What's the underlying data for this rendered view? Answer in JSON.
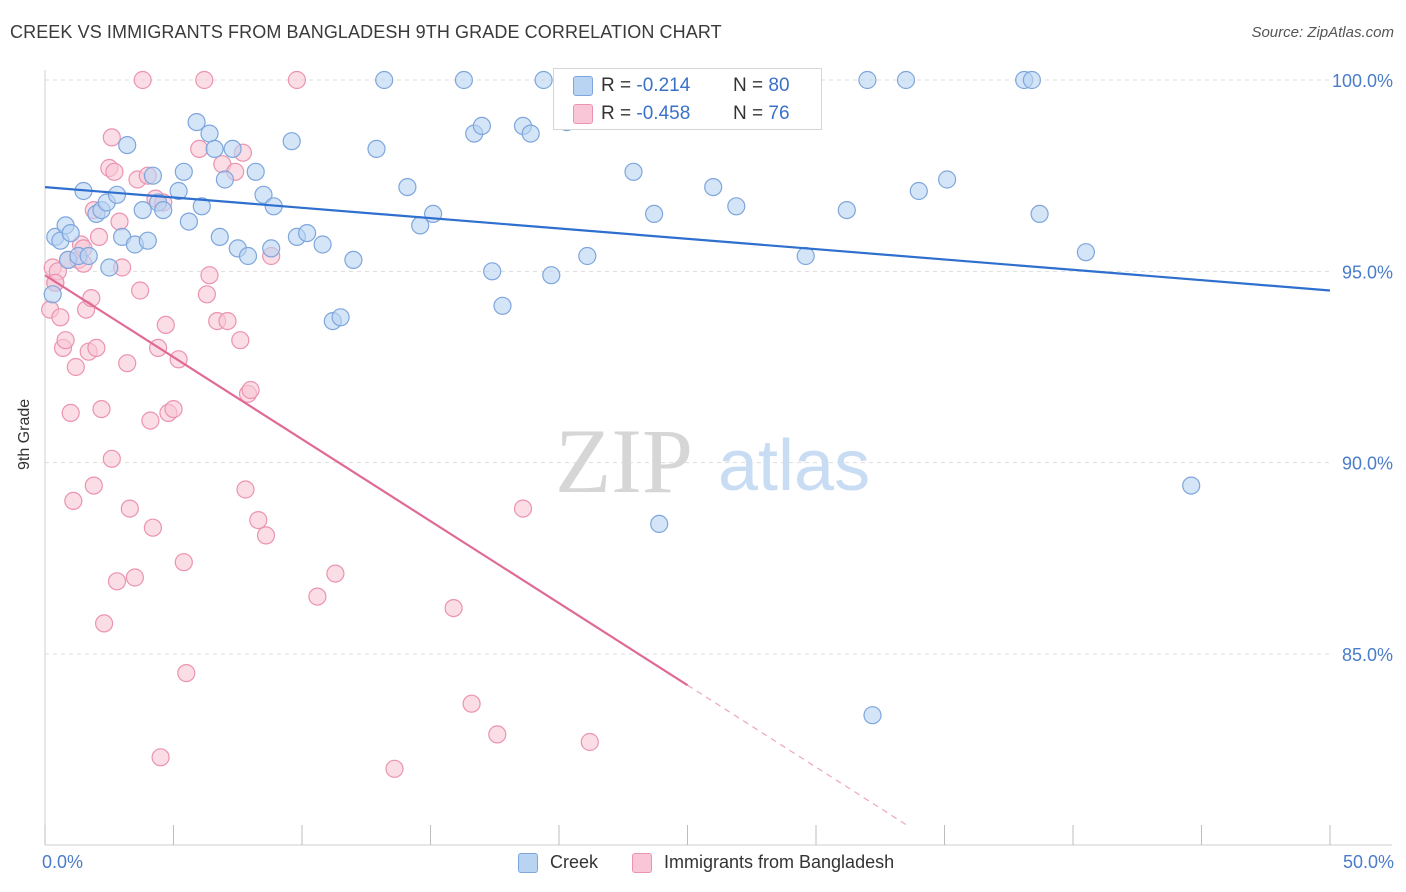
{
  "header": {
    "title": "CREEK VS IMMIGRANTS FROM BANGLADESH 9TH GRADE CORRELATION CHART",
    "source": "Source: ZipAtlas.com"
  },
  "watermark": {
    "zip": "ZIP",
    "atlas": "atlas"
  },
  "legend": {
    "rows": [
      {
        "r_label": "R =",
        "r_value": "-0.214",
        "n_label": "N =",
        "n_value": "80"
      },
      {
        "r_label": "R =",
        "r_value": "-0.458",
        "n_label": "N =",
        "n_value": "76"
      }
    ]
  },
  "bottom_legend": {
    "creek": "Creek",
    "bangladesh": "Immigrants from Bangladesh"
  },
  "colors": {
    "creek_fill": "#b9d3f3",
    "creek_stroke": "#7ea6dc",
    "creek_line": "#2f6fce",
    "bang_fill": "#f8c6d6",
    "bang_stroke": "#eb93b1",
    "bang_line": "#e06a96",
    "tick_text": "#4a7cc9",
    "grid": "#dddddd"
  },
  "chart_data": {
    "type": "scatter",
    "title": "CREEK VS IMMIGRANTS FROM BANGLADESH 9TH GRADE CORRELATION CHART",
    "xlabel": "",
    "ylabel": "9th Grade",
    "xlim": [
      0,
      50
    ],
    "ylim": [
      80.5,
      101
    ],
    "x_tick_labels": [
      "0.0%",
      "50.0%"
    ],
    "y_ticks": [
      85,
      90,
      95,
      100
    ],
    "y_tick_labels": [
      "85.0%",
      "90.0%",
      "95.0%",
      "100.0%"
    ],
    "grid": true,
    "legend_position": "top-center",
    "series": [
      {
        "name": "Creek",
        "r": -0.214,
        "n": 80,
        "trend": {
          "x": [
            0,
            50
          ],
          "y": [
            97.2,
            94.5
          ],
          "dashed_from": null
        },
        "points": [
          [
            0.3,
            94.4
          ],
          [
            0.4,
            95.9
          ],
          [
            0.6,
            95.8
          ],
          [
            0.8,
            96.2
          ],
          [
            0.9,
            95.3
          ],
          [
            1.0,
            96.0
          ],
          [
            1.3,
            95.4
          ],
          [
            1.5,
            97.1
          ],
          [
            1.7,
            95.4
          ],
          [
            2.0,
            96.5
          ],
          [
            2.2,
            96.6
          ],
          [
            2.4,
            96.8
          ],
          [
            2.5,
            95.1
          ],
          [
            2.8,
            97.0
          ],
          [
            3.0,
            95.9
          ],
          [
            3.2,
            98.3
          ],
          [
            3.5,
            95.7
          ],
          [
            3.8,
            96.6
          ],
          [
            4.0,
            95.8
          ],
          [
            4.2,
            97.5
          ],
          [
            4.4,
            96.8
          ],
          [
            4.6,
            96.6
          ],
          [
            5.2,
            97.1
          ],
          [
            5.4,
            97.6
          ],
          [
            5.6,
            96.3
          ],
          [
            5.9,
            98.9
          ],
          [
            6.1,
            96.7
          ],
          [
            6.4,
            98.6
          ],
          [
            6.6,
            98.2
          ],
          [
            6.8,
            95.9
          ],
          [
            7.0,
            97.4
          ],
          [
            7.3,
            98.2
          ],
          [
            7.5,
            95.6
          ],
          [
            7.9,
            95.4
          ],
          [
            8.2,
            97.6
          ],
          [
            8.5,
            97.0
          ],
          [
            8.9,
            96.7
          ],
          [
            8.8,
            95.6
          ],
          [
            9.6,
            98.4
          ],
          [
            9.8,
            95.9
          ],
          [
            10.2,
            96.0
          ],
          [
            10.8,
            95.7
          ],
          [
            11.2,
            93.7
          ],
          [
            11.5,
            93.8
          ],
          [
            12.0,
            95.3
          ],
          [
            13.2,
            100
          ],
          [
            12.9,
            98.2
          ],
          [
            14.1,
            97.2
          ],
          [
            14.6,
            96.2
          ],
          [
            15.1,
            96.5
          ],
          [
            16.3,
            100
          ],
          [
            16.7,
            98.6
          ],
          [
            17.0,
            98.8
          ],
          [
            17.4,
            95.0
          ],
          [
            17.8,
            94.1
          ],
          [
            18.6,
            98.8
          ],
          [
            18.9,
            98.6
          ],
          [
            19.4,
            100
          ],
          [
            19.7,
            94.9
          ],
          [
            20.3,
            98.9
          ],
          [
            21.1,
            95.4
          ],
          [
            22.9,
            97.6
          ],
          [
            23.7,
            96.5
          ],
          [
            23.9,
            88.4
          ],
          [
            25.7,
            100
          ],
          [
            26.0,
            97.2
          ],
          [
            26.9,
            96.7
          ],
          [
            29.6,
            95.4
          ],
          [
            29.7,
            100
          ],
          [
            31.2,
            96.6
          ],
          [
            32.0,
            100
          ],
          [
            32.2,
            83.4
          ],
          [
            33.5,
            100
          ],
          [
            34.0,
            97.1
          ],
          [
            35.1,
            97.4
          ],
          [
            38.1,
            100
          ],
          [
            38.4,
            100
          ],
          [
            38.7,
            96.5
          ],
          [
            40.5,
            95.5
          ],
          [
            44.6,
            89.4
          ]
        ]
      },
      {
        "name": "Immigrants from Bangladesh",
        "r": -0.458,
        "n": 76,
        "trend": {
          "x": [
            0,
            33.6
          ],
          "y": [
            94.9,
            80.5
          ],
          "dashed_from": 25.0
        },
        "points": [
          [
            0.2,
            94.0
          ],
          [
            0.3,
            95.1
          ],
          [
            0.4,
            94.7
          ],
          [
            0.5,
            95.0
          ],
          [
            0.6,
            93.8
          ],
          [
            0.7,
            93.0
          ],
          [
            0.8,
            93.2
          ],
          [
            0.9,
            95.3
          ],
          [
            1.0,
            91.3
          ],
          [
            1.1,
            89.0
          ],
          [
            1.2,
            92.5
          ],
          [
            1.3,
            95.3
          ],
          [
            1.4,
            95.7
          ],
          [
            1.5,
            95.6
          ],
          [
            1.6,
            94.0
          ],
          [
            1.7,
            92.9
          ],
          [
            1.8,
            94.3
          ],
          [
            1.9,
            89.4
          ],
          [
            2.0,
            93.0
          ],
          [
            2.1,
            95.9
          ],
          [
            2.2,
            91.4
          ],
          [
            2.3,
            85.8
          ],
          [
            2.5,
            97.7
          ],
          [
            2.6,
            90.1
          ],
          [
            2.7,
            97.6
          ],
          [
            2.8,
            86.9
          ],
          [
            2.9,
            96.3
          ],
          [
            3.0,
            95.1
          ],
          [
            3.2,
            92.6
          ],
          [
            3.3,
            88.8
          ],
          [
            3.5,
            87.0
          ],
          [
            3.6,
            97.4
          ],
          [
            3.7,
            94.5
          ],
          [
            3.8,
            100
          ],
          [
            4.0,
            97.5
          ],
          [
            4.1,
            91.1
          ],
          [
            4.2,
            88.3
          ],
          [
            4.3,
            96.9
          ],
          [
            4.4,
            93.0
          ],
          [
            4.5,
            82.3
          ],
          [
            4.6,
            96.8
          ],
          [
            4.7,
            93.6
          ],
          [
            4.8,
            91.3
          ],
          [
            5.0,
            91.4
          ],
          [
            5.2,
            92.7
          ],
          [
            5.4,
            87.4
          ],
          [
            5.5,
            84.5
          ],
          [
            6.0,
            98.2
          ],
          [
            6.2,
            100
          ],
          [
            6.3,
            94.4
          ],
          [
            6.4,
            94.9
          ],
          [
            6.7,
            93.7
          ],
          [
            6.9,
            97.8
          ],
          [
            7.1,
            93.7
          ],
          [
            7.4,
            97.6
          ],
          [
            7.6,
            93.2
          ],
          [
            7.7,
            98.1
          ],
          [
            7.8,
            89.3
          ],
          [
            7.9,
            91.8
          ],
          [
            8.0,
            91.9
          ],
          [
            8.3,
            88.5
          ],
          [
            8.8,
            95.4
          ],
          [
            8.6,
            88.1
          ],
          [
            9.8,
            100
          ],
          [
            10.6,
            86.5
          ],
          [
            11.3,
            87.1
          ],
          [
            13.6,
            82.0
          ],
          [
            15.9,
            86.2
          ],
          [
            16.6,
            83.7
          ],
          [
            17.6,
            82.9
          ],
          [
            18.6,
            88.8
          ],
          [
            21.2,
            82.7
          ],
          [
            2.6,
            98.5
          ],
          [
            1.5,
            95.2
          ],
          [
            0.4,
            94.7
          ],
          [
            1.9,
            96.6
          ]
        ]
      }
    ]
  }
}
